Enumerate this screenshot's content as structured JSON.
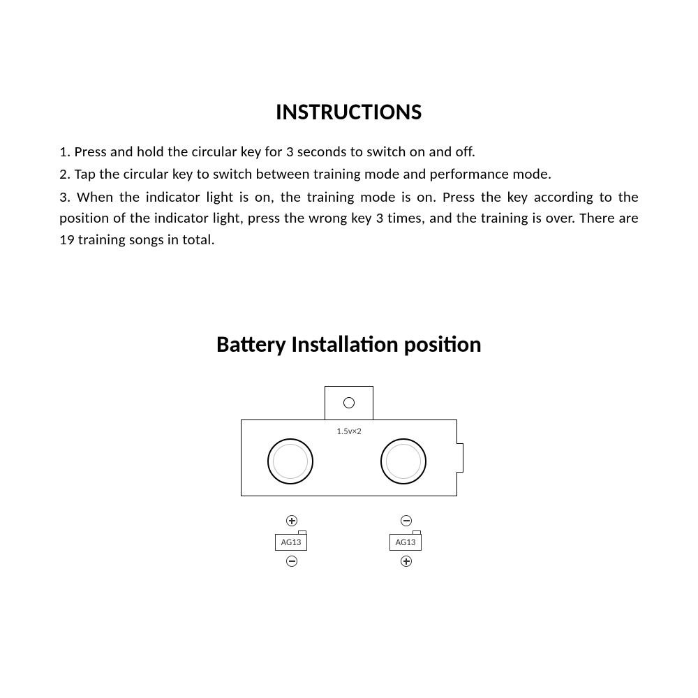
{
  "title": "INSTRUCTIONS",
  "instructions": [
    "1.  Press and hold the circular key for 3 seconds to switch on and off.",
    "2.  Tap the circular key to switch between training mode and performance mode.",
    "3.  When the indicator light is on, the training mode is on. Press the key according to the position of the indicator light, press the wrong key 3 times, and the training is over. There are 19 training songs in total."
  ],
  "battery_title": "Battery Installation position",
  "diagram": {
    "voltage_label": "1.5v×2",
    "battery_type": "AG13",
    "left": {
      "top_polarity": "plus",
      "bottom_polarity": "minus"
    },
    "right": {
      "top_polarity": "minus",
      "bottom_polarity": "plus"
    },
    "colors": {
      "stroke": "#000000",
      "background": "#ffffff",
      "label": "#444444"
    }
  }
}
